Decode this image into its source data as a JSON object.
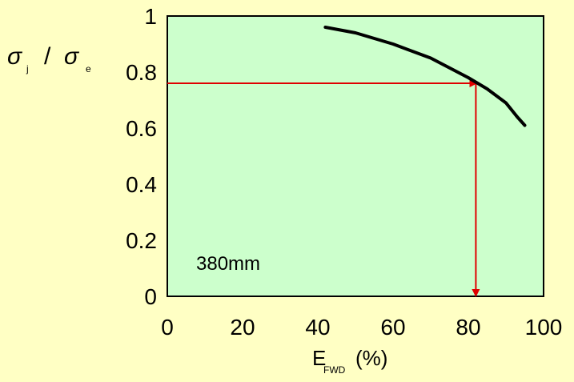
{
  "chart_data": {
    "type": "line",
    "background_color": "#FFFFC4",
    "plot_area_color": "#CCFFCC",
    "series": [
      {
        "color": "#000000",
        "x": [
          42,
          50,
          60,
          70,
          80,
          85,
          90,
          93,
          95
        ],
        "y": [
          0.96,
          0.94,
          0.9,
          0.85,
          0.78,
          0.74,
          0.69,
          0.64,
          0.61
        ]
      }
    ],
    "reference_lines": {
      "color": "#E00000",
      "x": 82,
      "y": 0.76
    },
    "xlim": [
      0,
      100
    ],
    "ylim": [
      0,
      1
    ],
    "x_ticks": [
      "0",
      "20",
      "40",
      "60",
      "80",
      "100"
    ],
    "y_ticks": [
      "0",
      "0.2",
      "0.4",
      "0.6",
      "0.8",
      "1"
    ],
    "grid": false,
    "annotation": "380mm",
    "xlabel": {
      "main": "E",
      "sub": "FWD",
      "unit": "(%)"
    },
    "ylabel": {
      "sigma": "σ",
      "sub_numerator": "j",
      "slash": "/",
      "sub_denominator": "e"
    }
  }
}
